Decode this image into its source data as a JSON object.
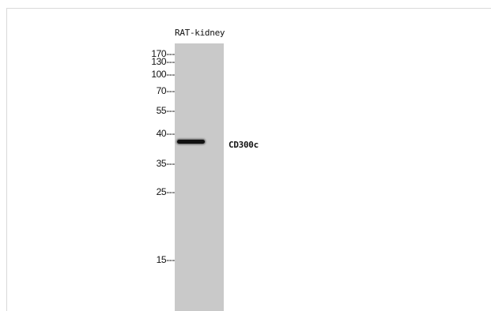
{
  "blot": {
    "lane_label": "RAT-kidney",
    "band_label": "CD300c",
    "markers": [
      {
        "label": "170---"
      },
      {
        "label": "130---"
      },
      {
        "label": "100---"
      },
      {
        "label": "70---"
      },
      {
        "label": "55---"
      },
      {
        "label": "40---"
      },
      {
        "label": "35---"
      },
      {
        "label": "25---"
      },
      {
        "label": "15---"
      }
    ]
  }
}
